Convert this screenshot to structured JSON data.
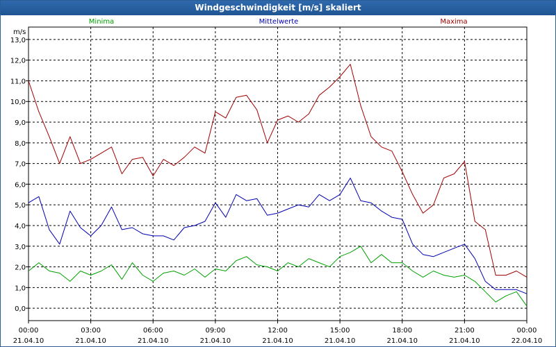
{
  "window": {
    "title": "Windgeschwindigkeit [m/s] skaliert"
  },
  "colors": {
    "minima": "#00a000",
    "mean": "#0000b0",
    "maxima": "#a00000",
    "grid": "#000000",
    "titlebar": "#2560a0"
  },
  "chart_data": {
    "type": "line",
    "title": "Windgeschwindigkeit [m/s] skaliert",
    "ylabel": "m/s",
    "xlabel": "",
    "ylim": [
      -0.6,
      13.6
    ],
    "xlim": [
      0,
      24
    ],
    "grid": true,
    "legend": "top",
    "y_ticks": [
      "13,0",
      "12,0",
      "11,0",
      "10,0",
      "9,0",
      "8,0",
      "7,0",
      "6,0",
      "5,0",
      "4,0",
      "3,0",
      "2,0",
      "1,0",
      "0,0"
    ],
    "x_ticks": [
      {
        "time": "00:00",
        "date": "21.04.10"
      },
      {
        "time": "03:00",
        "date": "21.04.10"
      },
      {
        "time": "06:00",
        "date": "21.04.10"
      },
      {
        "time": "09:00",
        "date": "21.04.10"
      },
      {
        "time": "12:00",
        "date": "21.04.10"
      },
      {
        "time": "15:00",
        "date": "21.04.10"
      },
      {
        "time": "18:00",
        "date": "21.04.10"
      },
      {
        "time": "21:00",
        "date": "21.04.10"
      },
      {
        "time": "00:00",
        "date": "22.04.10"
      }
    ],
    "x_hours": [
      0,
      0.5,
      1,
      1.5,
      2,
      2.5,
      3,
      3.5,
      4,
      4.5,
      5,
      5.5,
      6,
      6.5,
      7,
      7.5,
      8,
      8.5,
      9,
      9.5,
      10,
      10.5,
      11,
      11.5,
      12,
      12.5,
      13,
      13.5,
      14,
      14.5,
      15,
      15.5,
      16,
      16.5,
      17,
      17.5,
      18,
      18.5,
      19,
      19.5,
      20,
      20.5,
      21,
      21.5,
      22,
      22.5,
      23,
      23.5,
      24
    ],
    "series": [
      {
        "name": "Minima",
        "color": "#00a000",
        "values": [
          1.8,
          2.2,
          1.8,
          1.7,
          1.3,
          1.8,
          1.6,
          1.8,
          2.1,
          1.4,
          2.2,
          1.6,
          1.3,
          1.7,
          1.8,
          1.6,
          1.9,
          1.5,
          1.9,
          1.8,
          2.3,
          2.5,
          2.1,
          2.0,
          1.8,
          2.2,
          2.0,
          2.4,
          2.2,
          2.0,
          2.5,
          2.7,
          3.0,
          2.2,
          2.6,
          2.2,
          2.2,
          1.8,
          1.5,
          1.8,
          1.6,
          1.5,
          1.6,
          1.3,
          0.8,
          0.3,
          0.6,
          0.8,
          0.1
        ]
      },
      {
        "name": "Mittelwerte",
        "color": "#0000b0",
        "values": [
          5.1,
          5.4,
          3.8,
          3.1,
          4.7,
          3.9,
          3.5,
          4.0,
          4.9,
          3.8,
          3.9,
          3.6,
          3.5,
          3.5,
          3.3,
          3.9,
          4.0,
          4.2,
          5.1,
          4.4,
          5.5,
          5.2,
          5.3,
          4.5,
          4.6,
          4.8,
          5.0,
          4.9,
          5.5,
          5.2,
          5.5,
          6.3,
          5.2,
          5.1,
          4.7,
          4.4,
          4.3,
          3.1,
          2.6,
          2.5,
          2.7,
          2.9,
          3.1,
          2.4,
          1.3,
          0.9,
          0.9,
          0.9,
          0.7
        ]
      },
      {
        "name": "Maxima",
        "color": "#a00000",
        "values": [
          11.0,
          9.5,
          8.3,
          7.0,
          8.3,
          7.0,
          7.2,
          7.5,
          7.8,
          6.5,
          7.2,
          7.3,
          6.4,
          7.2,
          6.9,
          7.3,
          7.8,
          7.5,
          9.5,
          9.2,
          10.2,
          10.3,
          9.6,
          8.0,
          9.1,
          9.3,
          9.0,
          9.4,
          10.3,
          10.7,
          11.2,
          11.8,
          9.8,
          8.3,
          7.8,
          7.6,
          6.6,
          5.5,
          4.6,
          5.0,
          6.3,
          6.5,
          7.1,
          4.2,
          3.8,
          1.6,
          1.6,
          1.8,
          1.5
        ]
      }
    ]
  }
}
